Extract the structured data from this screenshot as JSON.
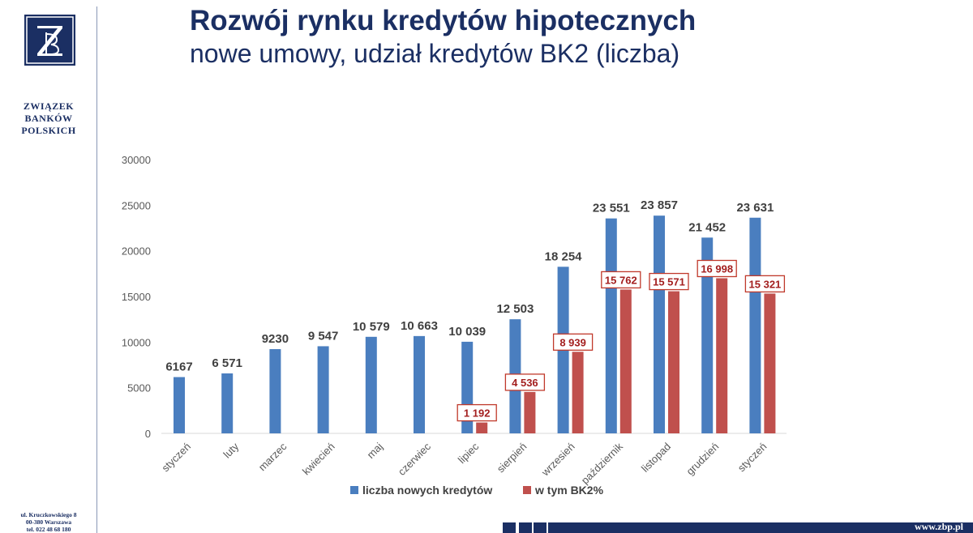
{
  "org": {
    "lines": [
      "ZWIĄZEK",
      "BANKÓW",
      "POLSKICH"
    ],
    "address": [
      "ul. Kruczkowskiego 8",
      "00-380 Warszawa",
      "tel. 022 48 68 180"
    ],
    "url": "www.zbp.pl"
  },
  "slide": {
    "title": "Rozwój rynku kredytów hipotecznych",
    "subtitle": "nowe umowy, udział kredytów BK2 (liczba)"
  },
  "colors": {
    "navy": "#1b2f63",
    "series1": "#4a7ebf",
    "series2": "#c0504d",
    "label2_text": "#a31e1e"
  },
  "chart_data": {
    "type": "bar",
    "categories": [
      "styczeń",
      "luty",
      "marzec",
      "kwiecień",
      "maj",
      "czerwiec",
      "lipiec",
      "sierpień",
      "wrzesień",
      "październik",
      "listopad",
      "grudzień",
      "styczeń"
    ],
    "series": [
      {
        "name": "liczba nowych kredytów",
        "values": [
          6167,
          6571,
          9230,
          9547,
          10579,
          10663,
          10039,
          12503,
          18254,
          23551,
          23857,
          21452,
          23631
        ],
        "labels": [
          "6167",
          "6 571",
          "9230",
          "9 547",
          "10 579",
          "10 663",
          "10 039",
          "12 503",
          "18 254",
          "23 551",
          "23 857",
          "21 452",
          "23 631"
        ]
      },
      {
        "name": "w tym BK2%",
        "values": [
          null,
          null,
          null,
          null,
          null,
          null,
          1192,
          4536,
          8939,
          15762,
          15571,
          16998,
          15321
        ],
        "labels": [
          "",
          "",
          "",
          "",
          "",
          "",
          "1 192",
          "4 536",
          "8 939",
          "15 762",
          "15 571",
          "16 998",
          "15 321"
        ]
      }
    ],
    "ylim": [
      0,
      30000
    ],
    "yticks": [
      "0",
      "5000",
      "10000",
      "15000",
      "20000",
      "25000",
      "30000"
    ],
    "grid": false,
    "legend": "bottom"
  }
}
